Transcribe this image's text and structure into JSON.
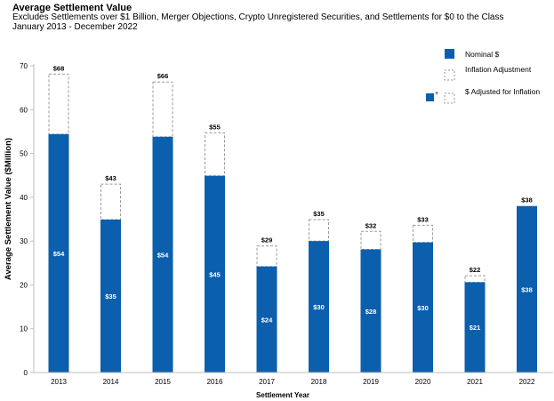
{
  "header": {
    "title": "Average Settlement Value",
    "subtitle": "Excludes Settlements over $1 Billion, Merger Objections, Crypto Unregistered Securities, and Settlements  for $0 to the Class",
    "period": "January 2013 - December 2022"
  },
  "colors": {
    "nominal": "#0b5fad",
    "adjustment_border": "#9a9a9a",
    "axis": "#bfbfbf"
  },
  "chart_data": {
    "type": "bar",
    "stacked": true,
    "categories": [
      "2013",
      "2014",
      "2015",
      "2016",
      "2017",
      "2018",
      "2019",
      "2020",
      "2021",
      "2022"
    ],
    "series": [
      {
        "name": "Nominal $",
        "values": [
          54.4,
          34.9,
          53.8,
          44.9,
          24.2,
          30.0,
          28.1,
          29.7,
          20.6,
          38.0
        ]
      },
      {
        "name": "Inflation Adjustment",
        "values": [
          13.7,
          8.1,
          12.5,
          9.8,
          4.7,
          4.9,
          4.1,
          3.9,
          1.5,
          0
        ]
      }
    ],
    "nominal_labels": [
      "$54",
      "$35",
      "$54",
      "$45",
      "$24",
      "$30",
      "$28",
      "$30",
      "$21",
      "$38"
    ],
    "total_labels": [
      "$68",
      "$43",
      "$66",
      "$55",
      "$29",
      "$35",
      "$32",
      "$33",
      "$22",
      "$38"
    ],
    "xlabel": "Settlement Year",
    "ylabel": "Average Settlement Value ($Million)",
    "ylim": [
      0,
      70
    ],
    "yticks": [
      0,
      10,
      20,
      30,
      40,
      50,
      60,
      70
    ],
    "grid": false,
    "legend_position": "top-right",
    "legend": [
      {
        "label": "Nominal $"
      },
      {
        "label": "Inflation Adjustment"
      },
      {
        "label": "$ Adjusted for Inflation",
        "marker_superscript": "+"
      }
    ]
  }
}
